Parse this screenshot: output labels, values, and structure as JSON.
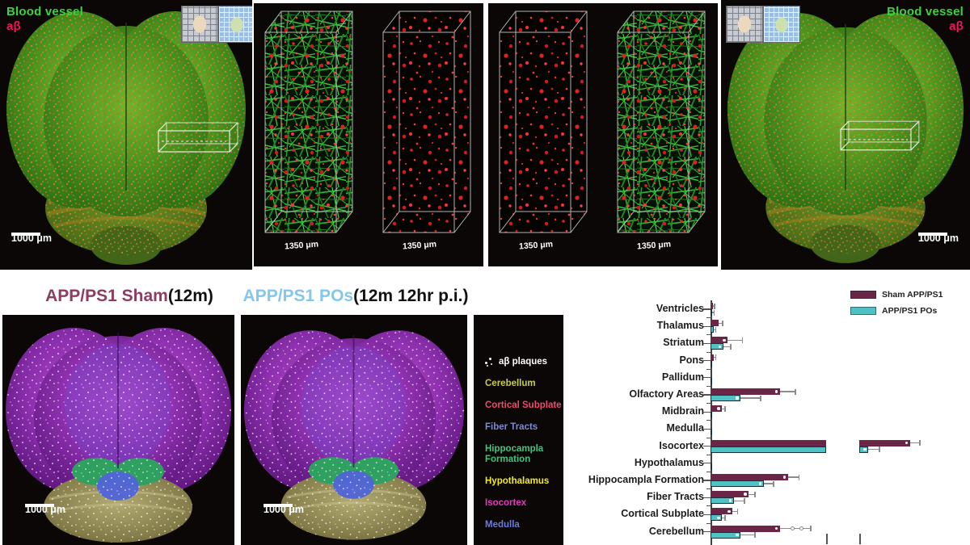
{
  "top": {
    "vessel_label": "Blood vessel",
    "abeta_label": "aβ",
    "scale_1000": "1000 μm",
    "scale_1350": "1350 μm",
    "colors": {
      "vessel_green": "#3fd13f",
      "abeta_red": "#f0155a"
    }
  },
  "bottom": {
    "titles": [
      {
        "group": "APP/PS1 Sham",
        "suffix": " (12m)",
        "color": "#8e3c62"
      },
      {
        "group": "APP/PS1 POs",
        "suffix": " (12m 12hr p.i.)",
        "color": "#85c6ec"
      }
    ],
    "scale_1000": "1000 μm",
    "region_legend": {
      "plaques_label": "aβ plaques",
      "plaques_color": "#ffffff",
      "items": [
        {
          "label": "Cerebellum",
          "color": "#c9cc4e"
        },
        {
          "label": "Cortical Subplate",
          "color": "#f0486e"
        },
        {
          "label": "Fiber Tracts",
          "color": "#7f8ad2"
        },
        {
          "label": "Hippocampla Formation",
          "color": "#43c383"
        },
        {
          "label": "Hypothalamus",
          "color": "#f2ea23"
        },
        {
          "label": "Isocortex",
          "color": "#e13bc0"
        },
        {
          "label": "Medulla",
          "color": "#6a7ae0"
        }
      ]
    }
  },
  "chart_data": {
    "type": "bar",
    "orientation": "horizontal",
    "title": "",
    "xlabel": "",
    "ylabel": "",
    "note": "x-axis numeric tick labels are cropped out of the screenshot; values estimated as percent of the first axis segment full scale; axis break after 100",
    "axis_break": {
      "enabled": true,
      "break_at": 100
    },
    "legend_position": "top-right",
    "legend": [
      {
        "name": "Sham APP/PS1",
        "color": "#6b2547"
      },
      {
        "name": "APP/PS1 POs",
        "color": "#4fc3c4"
      }
    ],
    "categories": [
      "Ventricles",
      "Thalamus",
      "Striatum",
      "Pons",
      "Pallidum",
      "Olfactory Areas",
      "Midbrain",
      "Medulla",
      "Isocortex",
      "Hypothalamus",
      "Hippocampla Formation",
      "Fiber Tracts",
      "Cortical Subplate",
      "Cerebellum"
    ],
    "series": [
      {
        "name": "Sham APP/PS1",
        "values": [
          2,
          7,
          15,
          3,
          0.7,
          60,
          10,
          0.7,
          144,
          0.7,
          67,
          33,
          19,
          60
        ],
        "errors": [
          1,
          3,
          12,
          1,
          0.5,
          13,
          2,
          0.5,
          8,
          0.5,
          9,
          5,
          4,
          26
        ]
      },
      {
        "name": "APP/PS1 POs",
        "values": [
          1.5,
          3,
          11,
          0.7,
          0.7,
          26,
          1.5,
          0.7,
          108,
          0.7,
          46,
          20,
          10,
          26
        ],
        "errors": [
          1,
          1,
          6,
          0.5,
          0.5,
          17,
          0.5,
          0.5,
          9,
          0.5,
          8,
          9,
          2,
          12
        ]
      }
    ]
  }
}
